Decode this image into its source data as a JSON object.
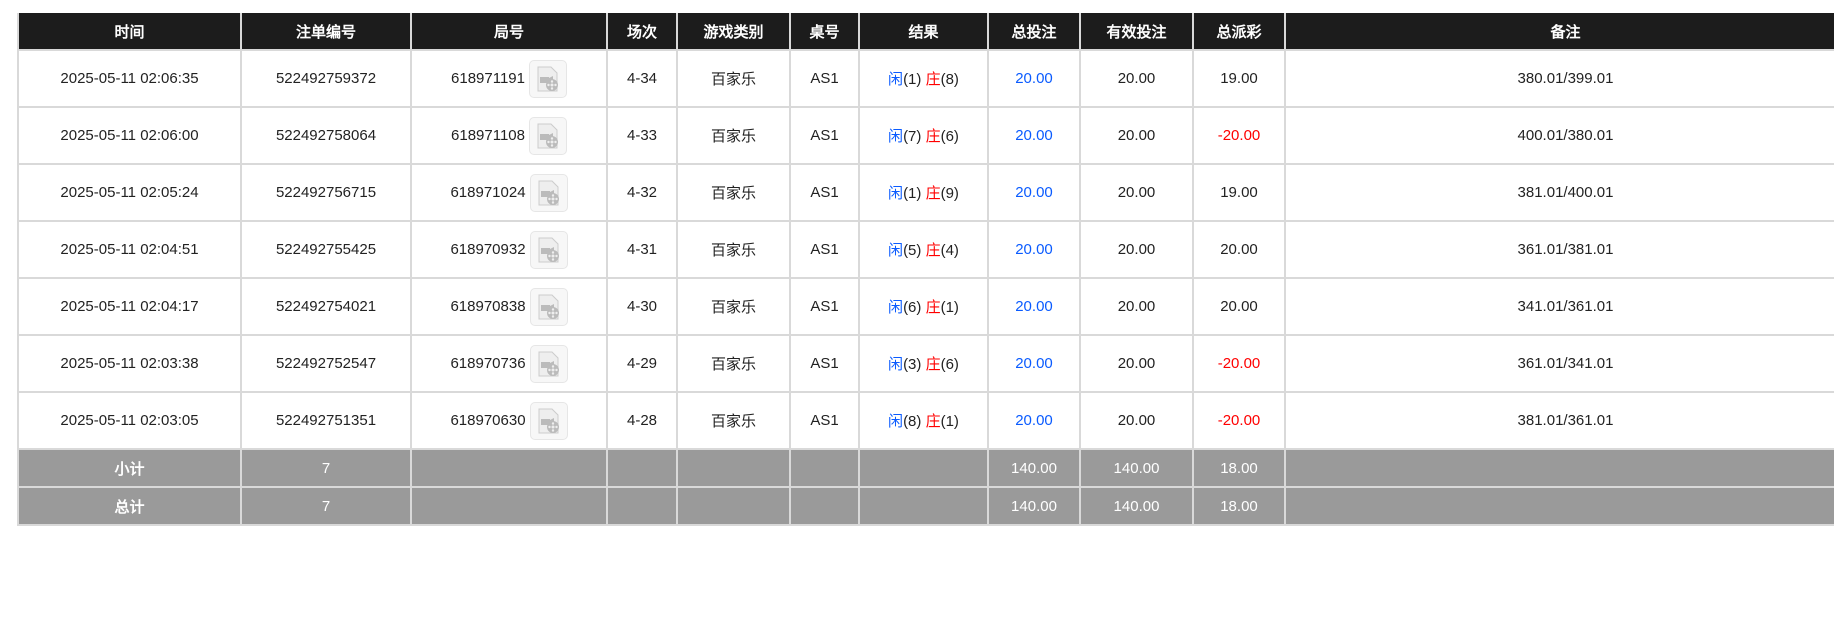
{
  "headers": [
    "时间",
    "注单编号",
    "局号",
    "场次",
    "游戏类别",
    "桌号",
    "结果",
    "总投注",
    "有效投注",
    "总派彩",
    "备注"
  ],
  "rows": [
    {
      "time": "2025-05-11 02:06:35",
      "bet_id": "522492759372",
      "round": "618971191",
      "shoe": "4-34",
      "game": "百家乐",
      "table": "AS1",
      "player_label": "闲",
      "player": "(1)",
      "banker_label": "庄",
      "banker": "(8)",
      "total_bet": "20.00",
      "valid_bet": "20.00",
      "payout": "19.00",
      "payout_negative": false,
      "note": "380.01/399.01"
    },
    {
      "time": "2025-05-11 02:06:00",
      "bet_id": "522492758064",
      "round": "618971108",
      "shoe": "4-33",
      "game": "百家乐",
      "table": "AS1",
      "player_label": "闲",
      "player": "(7)",
      "banker_label": "庄",
      "banker": "(6)",
      "total_bet": "20.00",
      "valid_bet": "20.00",
      "payout": "-20.00",
      "payout_negative": true,
      "note": "400.01/380.01"
    },
    {
      "time": "2025-05-11 02:05:24",
      "bet_id": "522492756715",
      "round": "618971024",
      "shoe": "4-32",
      "game": "百家乐",
      "table": "AS1",
      "player_label": "闲",
      "player": "(1)",
      "banker_label": "庄",
      "banker": "(9)",
      "total_bet": "20.00",
      "valid_bet": "20.00",
      "payout": "19.00",
      "payout_negative": false,
      "note": "381.01/400.01"
    },
    {
      "time": "2025-05-11 02:04:51",
      "bet_id": "522492755425",
      "round": "618970932",
      "shoe": "4-31",
      "game": "百家乐",
      "table": "AS1",
      "player_label": "闲",
      "player": "(5)",
      "banker_label": "庄",
      "banker": "(4)",
      "total_bet": "20.00",
      "valid_bet": "20.00",
      "payout": "20.00",
      "payout_negative": false,
      "note": "361.01/381.01"
    },
    {
      "time": "2025-05-11 02:04:17",
      "bet_id": "522492754021",
      "round": "618970838",
      "shoe": "4-30",
      "game": "百家乐",
      "table": "AS1",
      "player_label": "闲",
      "player": "(6)",
      "banker_label": "庄",
      "banker": "(1)",
      "total_bet": "20.00",
      "valid_bet": "20.00",
      "payout": "20.00",
      "payout_negative": false,
      "note": "341.01/361.01"
    },
    {
      "time": "2025-05-11 02:03:38",
      "bet_id": "522492752547",
      "round": "618970736",
      "shoe": "4-29",
      "game": "百家乐",
      "table": "AS1",
      "player_label": "闲",
      "player": "(3)",
      "banker_label": "庄",
      "banker": "(6)",
      "total_bet": "20.00",
      "valid_bet": "20.00",
      "payout": "-20.00",
      "payout_negative": true,
      "note": "361.01/341.01"
    },
    {
      "time": "2025-05-11 02:03:05",
      "bet_id": "522492751351",
      "round": "618970630",
      "shoe": "4-28",
      "game": "百家乐",
      "table": "AS1",
      "player_label": "闲",
      "player": "(8)",
      "banker_label": "庄",
      "banker": "(1)",
      "total_bet": "20.00",
      "valid_bet": "20.00",
      "payout": "-20.00",
      "payout_negative": true,
      "note": "381.01/361.01"
    }
  ],
  "subtotal": {
    "label": "小计",
    "count": "7",
    "total_bet": "140.00",
    "valid_bet": "140.00",
    "payout": "18.00"
  },
  "total": {
    "label": "总计",
    "count": "7",
    "total_bet": "140.00",
    "valid_bet": "140.00",
    "payout": "18.00"
  },
  "icons": {
    "replay": "video-replay-icon"
  },
  "colors": {
    "header_bg": "#1c1c1c",
    "player": "#0a5bff",
    "banker": "#ff0000",
    "negative": "#ff0000",
    "summary_bg": "#9a9a9a"
  }
}
